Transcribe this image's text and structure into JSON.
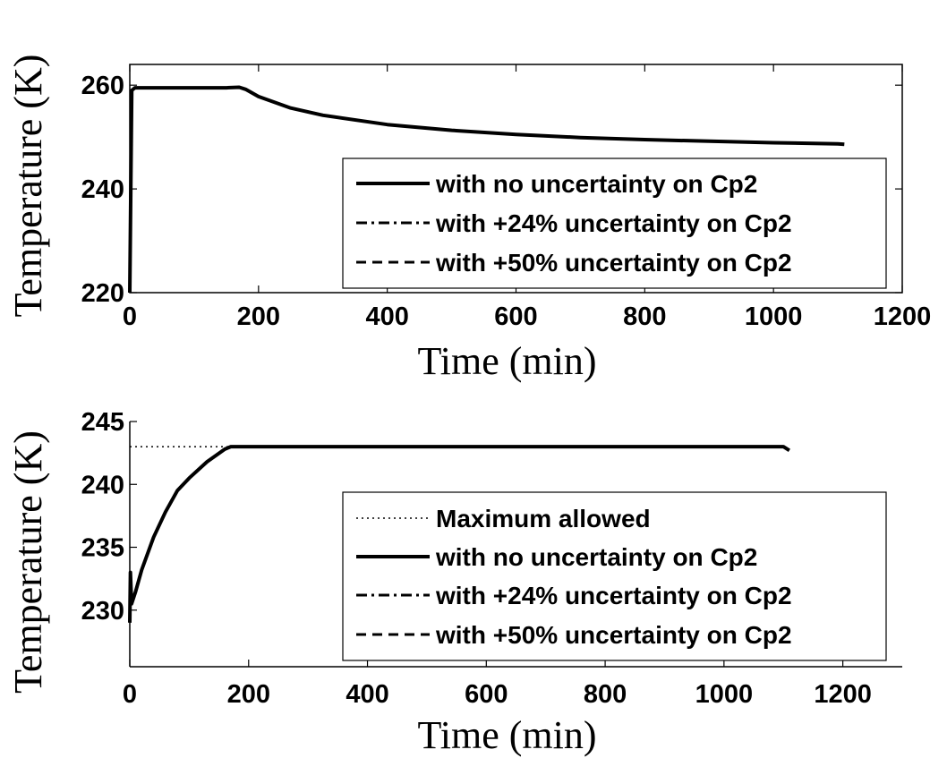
{
  "chart_data": [
    {
      "type": "line",
      "xlabel": "Time (min)",
      "ylabel": "Temperature (K)",
      "xlim": [
        0,
        1200
      ],
      "ylim": [
        220,
        264
      ],
      "xticks": [
        "0",
        "200",
        "400",
        "600",
        "800",
        "1000",
        "1200"
      ],
      "yticks": [
        "220",
        "240",
        "260"
      ],
      "grid": false,
      "legend_position": "bottom-right",
      "series": [
        {
          "name": "with no uncertainty on Cp2",
          "style": "solid",
          "x": [
            0,
            3,
            8,
            50,
            100,
            150,
            170,
            180,
            200,
            250,
            300,
            400,
            500,
            600,
            700,
            800,
            900,
            1000,
            1100,
            1110
          ],
          "y": [
            220,
            259,
            259.5,
            259.5,
            259.5,
            259.5,
            259.6,
            259.2,
            257.8,
            255.6,
            254.2,
            252.4,
            251.3,
            250.5,
            249.9,
            249.5,
            249.2,
            248.9,
            248.7,
            248.6
          ]
        },
        {
          "name": "with +24% uncertainty on Cp2",
          "style": "dashdot",
          "x": [],
          "y": []
        },
        {
          "name": "with +50% uncertainty on Cp2",
          "style": "dashed",
          "x": [],
          "y": []
        }
      ]
    },
    {
      "type": "line",
      "xlabel": "Time (min)",
      "ylabel": "Temperature (K)",
      "xlim": [
        0,
        1300
      ],
      "ylim": [
        225.5,
        245
      ],
      "xticks": [
        "0",
        "200",
        "400",
        "600",
        "800",
        "1000",
        "1200"
      ],
      "yticks": [
        "230",
        "235",
        "240",
        "245"
      ],
      "grid": false,
      "legend_position": "bottom-right",
      "series": [
        {
          "name": "Maximum allowed",
          "style": "dotted",
          "x": [
            0,
            170
          ],
          "y": [
            243,
            243
          ]
        },
        {
          "name": "with no uncertainty on Cp2",
          "style": "solid",
          "x": [
            0,
            1,
            3,
            10,
            20,
            40,
            60,
            80,
            100,
            130,
            160,
            170,
            180,
            300,
            500,
            700,
            900,
            1100,
            1110
          ],
          "y": [
            229,
            233,
            230.5,
            231.5,
            233.2,
            235.8,
            237.8,
            239.5,
            240.5,
            241.8,
            242.8,
            243.0,
            243.0,
            243.0,
            243.0,
            243.0,
            243.0,
            243.0,
            242.7
          ]
        },
        {
          "name": "with +24% uncertainty on Cp2",
          "style": "dashdot",
          "x": [],
          "y": []
        },
        {
          "name": "with +50% uncertainty on Cp2",
          "style": "dashed",
          "x": [],
          "y": []
        }
      ]
    }
  ]
}
